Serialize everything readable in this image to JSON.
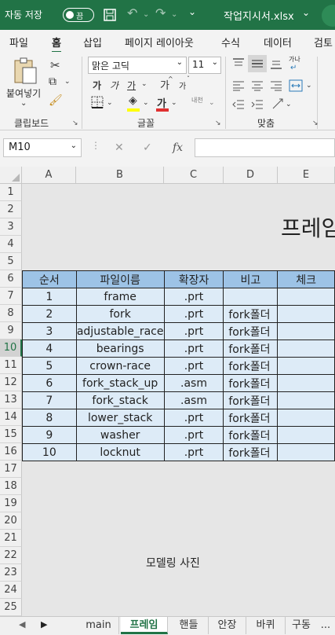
{
  "titlebar": {
    "autosave_label": "자동 저장",
    "autosave_state": "끔",
    "filename": "작업지시서.xlsx",
    "more": "⌄"
  },
  "tabs": [
    "파일",
    "홈",
    "삽입",
    "페이지 레이아웃",
    "수식",
    "데이터",
    "검토"
  ],
  "active_tab": "홈",
  "ribbon": {
    "clipboard": {
      "paste": "붙여넣기",
      "label": "클립보드"
    },
    "font": {
      "name": "맑은 고딕",
      "size": "11",
      "label": "글꼴",
      "bold": "가",
      "italic": "가",
      "underline": "가",
      "grow": "가",
      "shrink": "가",
      "font_color_glyph": "가",
      "phonetic": "내천",
      "font_color_accent": "#e03030",
      "fill_color_accent": "#ffff00"
    },
    "alignment": {
      "label": "맞춤",
      "wrap_glyph": "가나"
    }
  },
  "formula_bar": {
    "cell": "M10",
    "fx": "fx",
    "value": ""
  },
  "columns": [
    "A",
    "B",
    "C",
    "D",
    "E"
  ],
  "rows": [
    "1",
    "2",
    "3",
    "4",
    "5",
    "6",
    "7",
    "8",
    "9",
    "10",
    "11",
    "12",
    "13",
    "14",
    "15",
    "16",
    "17",
    "18",
    "19",
    "20",
    "21",
    "22",
    "23",
    "24",
    "25"
  ],
  "selected_row": "10",
  "sheet": {
    "title": "프레임",
    "headers": [
      "순서",
      "파일이름",
      "확장자",
      "비고",
      "체크"
    ],
    "table": [
      [
        "1",
        "frame",
        ".prt",
        "",
        ""
      ],
      [
        "2",
        "fork",
        ".prt",
        "fork폴더",
        ""
      ],
      [
        "3",
        "adjustable_race",
        ".prt",
        "fork폴더",
        ""
      ],
      [
        "4",
        "bearings",
        ".prt",
        "fork폴더",
        ""
      ],
      [
        "5",
        "crown-race",
        ".prt",
        "fork폴더",
        ""
      ],
      [
        "6",
        "fork_stack_up",
        ".asm",
        "fork폴더",
        ""
      ],
      [
        "7",
        "fork_stack",
        ".asm",
        "fork폴더",
        ""
      ],
      [
        "8",
        "lower_stack",
        ".prt",
        "fork폴더",
        ""
      ],
      [
        "9",
        "washer",
        ".prt",
        "fork폴더",
        ""
      ],
      [
        "10",
        "locknut",
        ".prt",
        "fork폴더",
        ""
      ]
    ],
    "caption": "모델링 사진"
  },
  "sheet_tabs": [
    "main",
    "프레임",
    "핸들",
    "안장",
    "바퀴",
    "구동"
  ],
  "active_sheet": "프레임",
  "more_tabs": "..."
}
